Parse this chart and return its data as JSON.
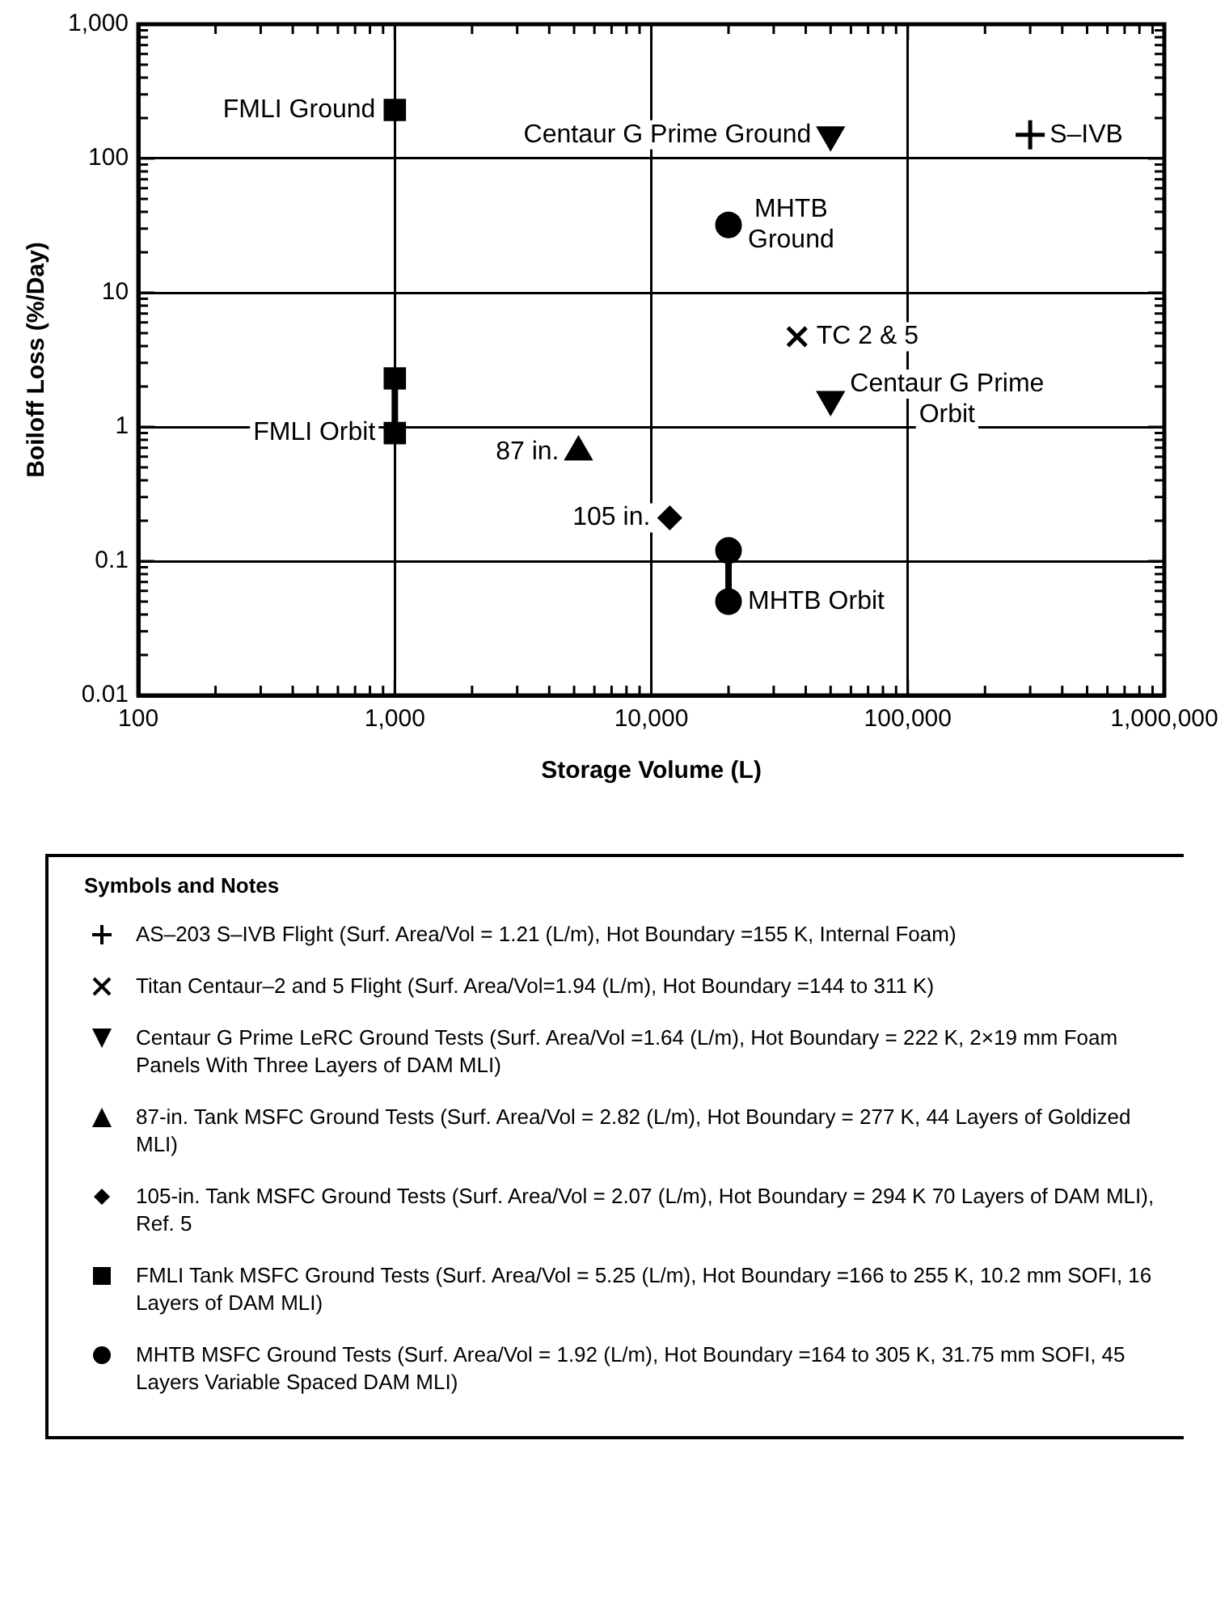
{
  "chart_data": {
    "type": "scatter",
    "xlabel": "Storage Volume (L)",
    "ylabel": "Boiloff Loss (%/Day)",
    "log": "xy",
    "grid": true,
    "legend": "bottom",
    "legend_title": "Symbols and Notes",
    "xlim": [
      100,
      1000000
    ],
    "ylim": [
      0.01,
      1000
    ],
    "xticks": [
      100,
      {
        "value": 200,
        "label": null
      },
      {
        "value": 300,
        "label": null
      },
      {
        "value": 400,
        "label": null
      },
      {
        "value": 500,
        "label": null
      },
      {
        "value": 600,
        "label": null
      },
      {
        "value": 700,
        "label": null
      },
      {
        "value": 800,
        "label": null
      },
      {
        "value": 900,
        "label": null
      },
      {
        "value": 1000,
        "label": "1,000"
      },
      {
        "value": 2000,
        "label": null
      },
      {
        "value": 3000,
        "label": null
      },
      {
        "value": 4000,
        "label": null
      },
      {
        "value": 5000,
        "label": null
      },
      {
        "value": 6000,
        "label": null
      },
      {
        "value": 7000,
        "label": null
      },
      {
        "value": 8000,
        "label": null
      },
      {
        "value": 9000,
        "label": null
      },
      {
        "value": 10000,
        "label": "10,000"
      },
      {
        "value": 20000,
        "label": null
      },
      {
        "value": 30000,
        "label": null
      },
      {
        "value": 40000,
        "label": null
      },
      {
        "value": 50000,
        "label": null
      },
      {
        "value": 60000,
        "label": null
      },
      {
        "value": 70000,
        "label": null
      },
      {
        "value": 80000,
        "label": null
      },
      {
        "value": 90000,
        "label": null
      },
      {
        "value": 100000,
        "label": "100,000"
      },
      {
        "value": 200000,
        "label": null
      },
      {
        "value": 300000,
        "label": null
      },
      {
        "value": 400000,
        "label": null
      },
      {
        "value": 500000,
        "label": null
      },
      {
        "value": 600000,
        "label": null
      },
      {
        "value": 700000,
        "label": null
      },
      {
        "value": 800000,
        "label": null
      },
      {
        "value": 900000,
        "label": null
      },
      {
        "value": 1000000,
        "label": "1,000,000"
      }
    ],
    "yticks": [
      0.01,
      {
        "value": 0.02,
        "label": null
      },
      {
        "value": 0.03,
        "label": null
      },
      {
        "value": 0.04,
        "label": null
      },
      {
        "value": 0.05,
        "label": null
      },
      {
        "value": 0.06,
        "label": null
      },
      {
        "value": 0.07,
        "label": null
      },
      {
        "value": 0.08,
        "label": null
      },
      {
        "value": 0.09,
        "label": null
      },
      0.1,
      {
        "value": 0.2,
        "label": null
      },
      {
        "value": 0.3,
        "label": null
      },
      {
        "value": 0.4,
        "label": null
      },
      {
        "value": 0.5,
        "label": null
      },
      {
        "value": 0.6,
        "label": null
      },
      {
        "value": 0.7,
        "label": null
      },
      {
        "value": 0.8,
        "label": null
      },
      {
        "value": 0.9,
        "label": null
      },
      1,
      {
        "value": 2,
        "label": null
      },
      {
        "value": 3,
        "label": null
      },
      {
        "value": 4,
        "label": null
      },
      {
        "value": 5,
        "label": null
      },
      {
        "value": 6,
        "label": null
      },
      {
        "value": 7,
        "label": null
      },
      {
        "value": 8,
        "label": null
      },
      {
        "value": 9,
        "label": null
      },
      10,
      {
        "value": 20,
        "label": null
      },
      {
        "value": 30,
        "label": null
      },
      {
        "value": 40,
        "label": null
      },
      {
        "value": 50,
        "label": null
      },
      {
        "value": 60,
        "label": null
      },
      {
        "value": 70,
        "label": null
      },
      {
        "value": 80,
        "label": null
      },
      {
        "value": 90,
        "label": null
      },
      100,
      {
        "value": 200,
        "label": null
      },
      {
        "value": 300,
        "label": null
      },
      {
        "value": 400,
        "label": null
      },
      {
        "value": 500,
        "label": null
      },
      {
        "value": 600,
        "label": null
      },
      {
        "value": 700,
        "label": null
      },
      {
        "value": 800,
        "label": null
      },
      {
        "value": 900,
        "label": null
      },
      {
        "value": 1000,
        "label": "1,000"
      }
    ],
    "series": [
      {
        "type": "line",
        "marker": "none",
        "color": "#000000",
        "x": [
          1000,
          1000
        ],
        "values": [
          2.3,
          0.9
        ]
      },
      {
        "type": "line",
        "marker": "none",
        "color": "#000000",
        "x": [
          20000,
          20000
        ],
        "values": [
          0.12,
          0.05
        ]
      },
      {
        "name": "AS–203 S–IVB Flight (Surf. Area/Vol = 1.21 (L/m), Hot Boundary =155 K, Internal Foam)",
        "marker": "cross",
        "color": "#000000",
        "x": [
          300000
        ],
        "values": [
          150
        ]
      },
      {
        "name": "Titan Centaur–2 and 5 Flight (Surf. Area/Vol=1.94 (L/m), Hot Boundary =144 to 311 K)",
        "marker": "x",
        "color": "#000000",
        "x": [
          37000
        ],
        "values": [
          4.7
        ]
      },
      {
        "name": "Centaur G Prime LeRC Ground Tests (Surf. Area/Vol =1.64 (L/m), Hot Boundary = 222 K, 2×19 mm Foam Panels With Three Layers of DAM MLI)",
        "marker": "triangle_down",
        "color": "#000000",
        "x": [
          50000,
          50000
        ],
        "values": [
          150,
          1.6
        ]
      },
      {
        "name": "87-in. Tank MSFC Ground Tests (Surf. Area/Vol = 2.82 (L/m), Hot Boundary = 277 K, 44 Layers of Goldized MLI)",
        "marker": "triangle",
        "color": "#000000",
        "x": [
          5200
        ],
        "values": [
          0.65
        ]
      },
      {
        "name": "105-in. Tank MSFC Ground Tests (Surf. Area/Vol = 2.07 (L/m), Hot Boundary = 294 K 70 Layers of DAM MLI), Ref. 5",
        "marker": "diamond",
        "color": "#000000",
        "x": [
          11800
        ],
        "values": [
          0.21
        ]
      },
      {
        "name": "FMLI Tank MSFC Ground Tests (Surf. Area/Vol = 5.25 (L/m), Hot Boundary =166 to 255 K, 10.2 mm SOFI, 16 Layers of DAM MLI)",
        "marker": "square",
        "color": "#000000",
        "x": [
          1000,
          1000,
          1000
        ],
        "values": [
          230,
          2.3,
          0.9
        ]
      },
      {
        "name": "MHTB  MSFC Ground Tests (Surf. Area/Vol = 1.92 (L/m), Hot Boundary =164 to 305 K, 31.75 mm SOFI, 45 Layers Variable Spaced DAM MLI)",
        "marker": "circle",
        "color": "#000000",
        "x": [
          20000,
          20000,
          20000
        ],
        "values": [
          32,
          0.12,
          0.05
        ]
      }
    ],
    "annotations": [
      {
        "text": "FMLI Ground",
        "x": 1000,
        "y": 230
      },
      {
        "text": "Centaur G Prime Ground",
        "x": 50000,
        "y": 150
      },
      {
        "text": "S–IVB",
        "x": 300000,
        "y": 150
      },
      {
        "text": "MHTB\nGround",
        "x": 20000,
        "y": 32
      },
      {
        "text": "TC 2 & 5",
        "x": 37000,
        "y": 4.7
      },
      {
        "text": "FMLI Orbit",
        "x": 1000,
        "y": 0.9
      },
      {
        "text": "Centaur G Prime\nOrbit",
        "x": 50000,
        "y": 1.6
      },
      {
        "text": "87 in.",
        "x": 5200,
        "y": 0.65
      },
      {
        "text": "105 in.",
        "x": 11800,
        "y": 0.21
      },
      {
        "text": "MHTB Orbit",
        "x": 20000,
        "y": 0.05
      }
    ]
  }
}
